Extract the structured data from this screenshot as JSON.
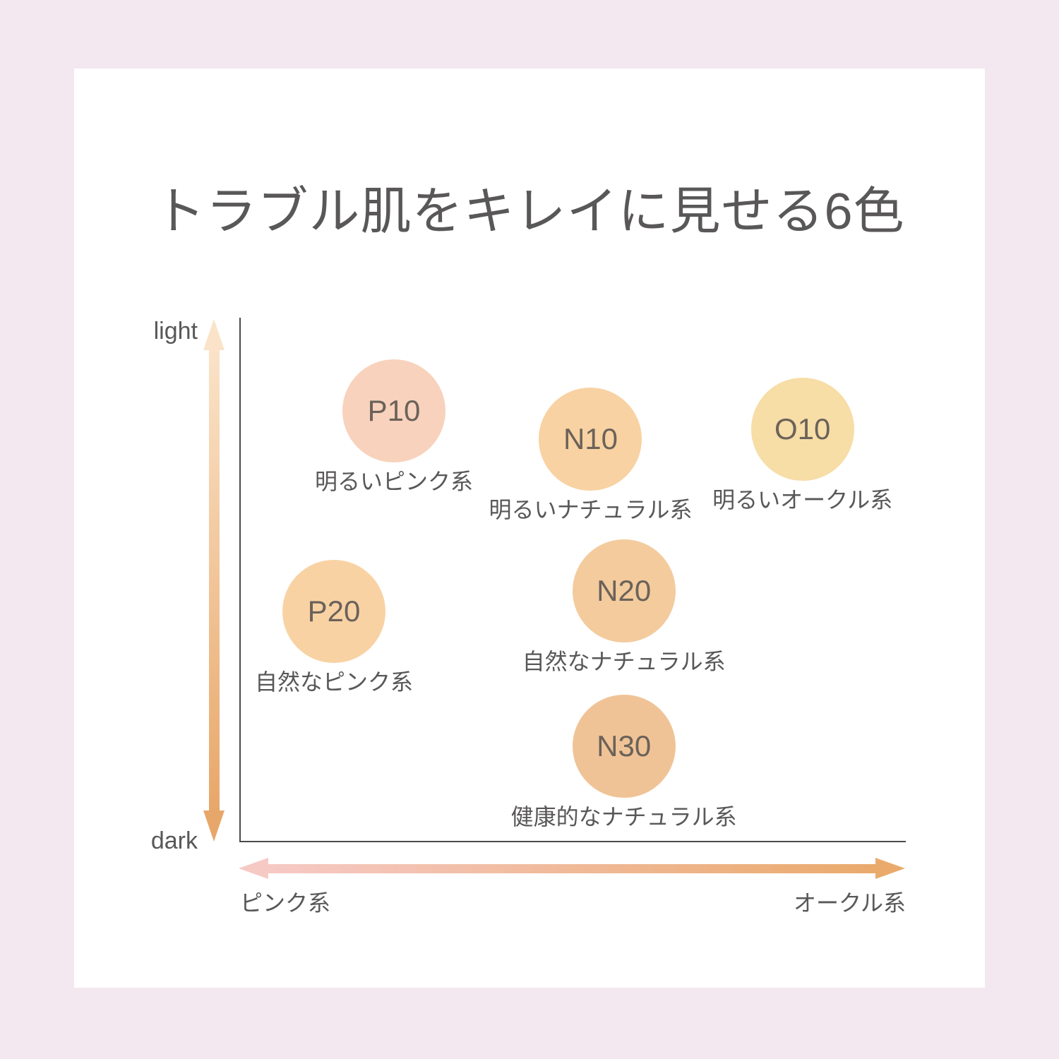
{
  "page": {
    "background_color": "#F3E7F0",
    "card_color": "#FFFFFF",
    "text_color": "#595757",
    "axis_line_color": "#4A4A4A"
  },
  "title": "トラブル肌をキレイに見せる6色",
  "chart_data": {
    "type": "scatter",
    "title": "トラブル肌をキレイに見せる6色",
    "y_axis": {
      "top_label": "light",
      "bottom_label": "dark",
      "arrow_color_top": "#FAE3C8",
      "arrow_color_bottom": "#E8A76A"
    },
    "x_axis": {
      "left_label": "ピンク系",
      "right_label": "オークル系",
      "arrow_color_left": "#F6C9C5",
      "arrow_color_right": "#EAAA6C"
    },
    "axis_ranges": {
      "x": [
        0,
        1
      ],
      "y": [
        0,
        1
      ],
      "x_meaning": "0 = pink side, 1 = ochre side",
      "y_meaning": "0 = light, 1 = dark"
    },
    "points": [
      {
        "code": "P10",
        "label": "明るいピンク系",
        "color": "#F8D2BC",
        "x": 0.232,
        "y": 0.178
      },
      {
        "code": "N10",
        "label": "明るいナチュラル系",
        "color": "#F8D2A2",
        "x": 0.527,
        "y": 0.232
      },
      {
        "code": "O10",
        "label": "明るいオークル系",
        "color": "#F7DDA6",
        "x": 0.845,
        "y": 0.213
      },
      {
        "code": "P20",
        "label": "自然なピンク系",
        "color": "#F9D2A4",
        "x": 0.142,
        "y": 0.56
      },
      {
        "code": "N20",
        "label": "自然なナチュラル系",
        "color": "#F3CB9D",
        "x": 0.577,
        "y": 0.521
      },
      {
        "code": "N30",
        "label": "健康的なナチュラル系",
        "color": "#F0C396",
        "x": 0.577,
        "y": 0.817
      }
    ]
  }
}
